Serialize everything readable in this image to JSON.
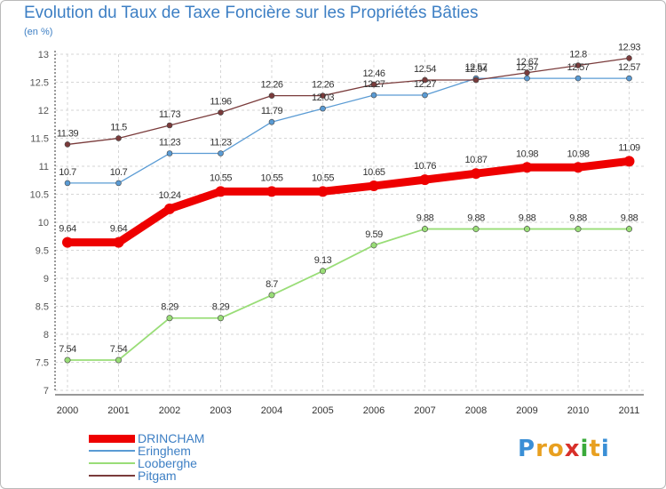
{
  "title": "Evolution du Taux de Taxe Foncière sur les Propriétés Bâties",
  "unit_label": "(en %)",
  "logo": {
    "text": "Proxiti",
    "colors": [
      "#3a8fd6",
      "#e8a020",
      "#e8a020",
      "#d8302a",
      "#3aaa3a",
      "#e8a020",
      "#3a8fd6"
    ]
  },
  "chart_data": {
    "type": "line",
    "title": "Evolution du Taux de Taxe Foncière sur les Propriétés Bâties",
    "ylabel": "(en %)",
    "xlabel": "",
    "ylim": [
      7,
      13
    ],
    "yticks": [
      "7",
      "7.5",
      "8",
      "8.5",
      "9",
      "9.5",
      "10",
      "10.5",
      "11",
      "11.5",
      "12",
      "12.5",
      "13"
    ],
    "categories": [
      "2000",
      "2001",
      "2002",
      "2003",
      "2004",
      "2005",
      "2006",
      "2007",
      "2008",
      "2009",
      "2010",
      "2011"
    ],
    "series": [
      {
        "name": "DRINCHAM",
        "color": "#ee0000",
        "labels": [
          "9.64",
          "9.64",
          "10.24",
          "10.55",
          "10.55",
          "10.55",
          "10.65",
          "10.76",
          "10.87",
          "10.98",
          "10.98",
          "11.09"
        ],
        "values": [
          9.64,
          9.64,
          10.24,
          10.55,
          10.55,
          10.55,
          10.65,
          10.76,
          10.87,
          10.98,
          10.98,
          11.09
        ]
      },
      {
        "name": "Eringhem",
        "color": "#5a9bd4",
        "labels": [
          "10.7",
          "10.7",
          "11.23",
          "11.23",
          "11.79",
          "12.03",
          "12.27",
          "12.27",
          "12.57",
          "12.57",
          "12.57",
          "12.57"
        ],
        "values": [
          10.7,
          10.7,
          11.23,
          11.23,
          11.79,
          12.03,
          12.27,
          12.27,
          12.57,
          12.57,
          12.57,
          12.57
        ]
      },
      {
        "name": "Looberghe",
        "color": "#99dd77",
        "labels": [
          "7.54",
          "7.54",
          "8.29",
          "8.29",
          "8.7",
          "9.13",
          "9.59",
          "9.88",
          "9.88",
          "9.88",
          "9.88",
          "9.88"
        ],
        "values": [
          7.54,
          7.54,
          8.29,
          8.29,
          8.7,
          9.13,
          9.59,
          9.88,
          9.88,
          9.88,
          9.88,
          9.88
        ]
      },
      {
        "name": "Pitgam",
        "color": "#7a3b3b",
        "labels": [
          "11.39",
          "11.5",
          "11.73",
          "11.96",
          "12.26",
          "12.26",
          "12.46",
          "12.54",
          "12.54",
          "12.67",
          "12.8",
          "12.93"
        ],
        "values": [
          11.39,
          11.5,
          11.73,
          11.96,
          12.26,
          12.26,
          12.46,
          12.54,
          12.54,
          12.67,
          12.8,
          12.93
        ]
      }
    ]
  }
}
